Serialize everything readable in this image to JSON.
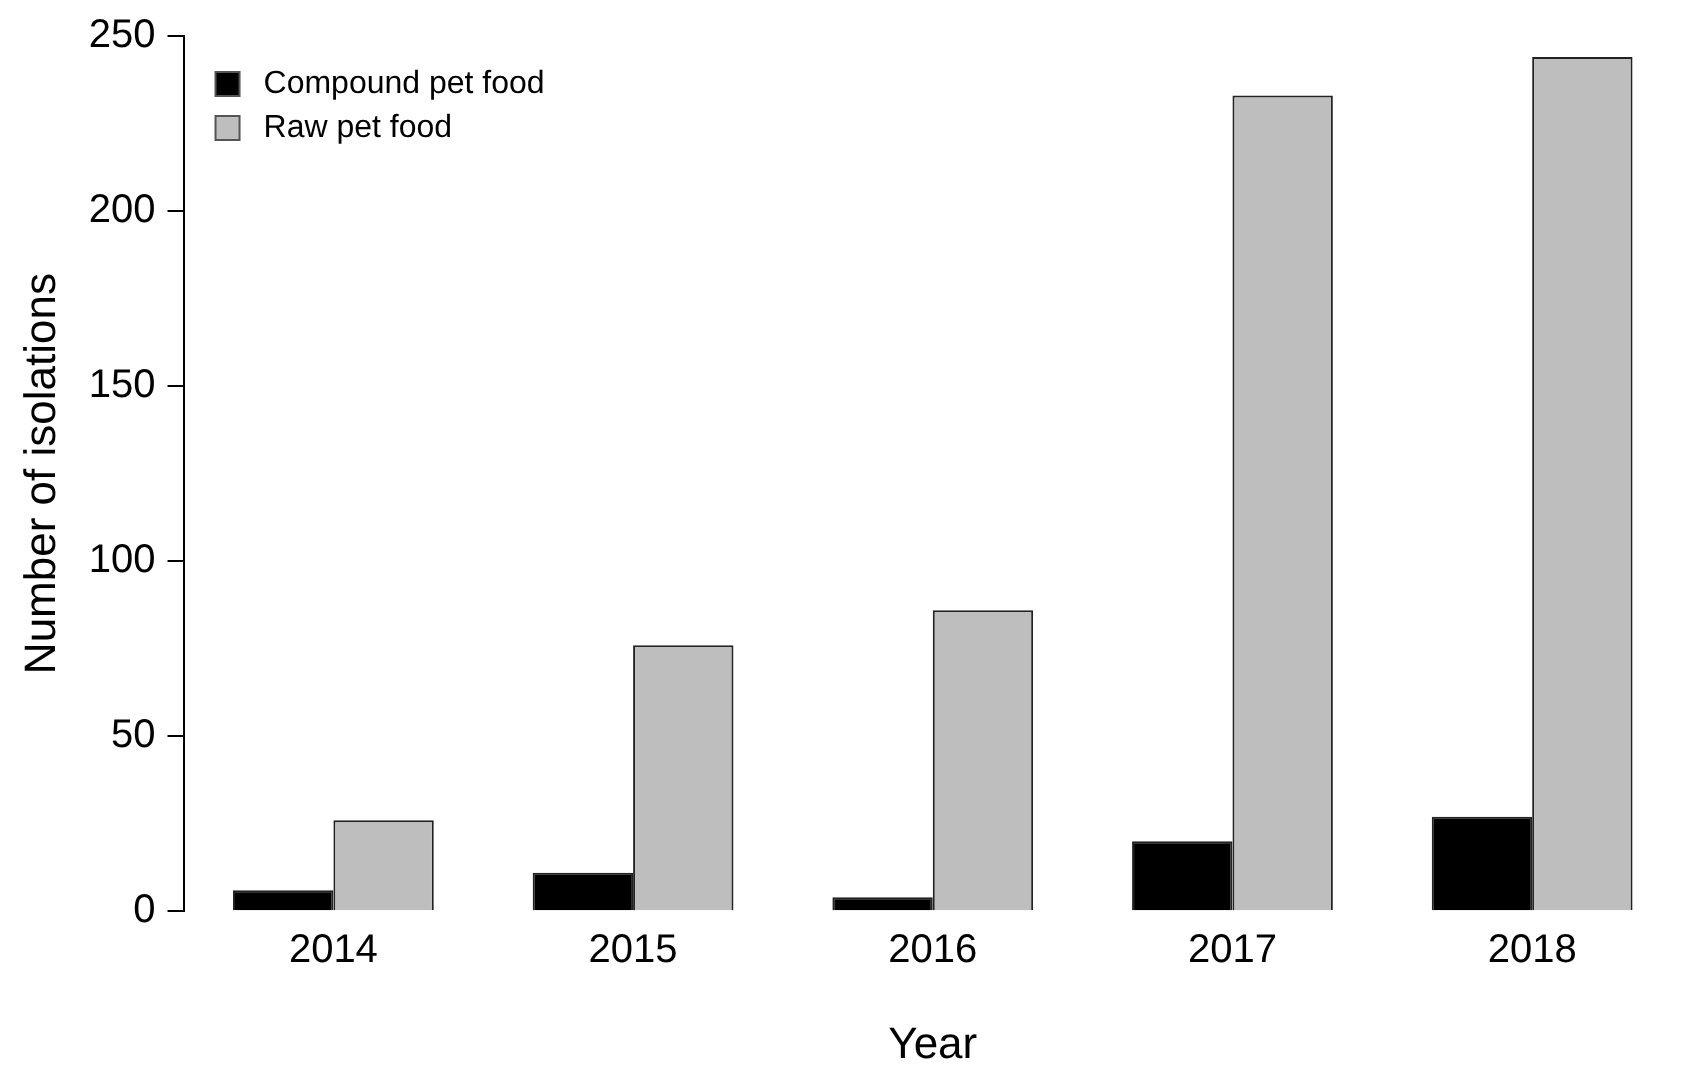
{
  "chart_data": {
    "type": "bar",
    "xlabel": "Year",
    "ylabel": "Number of isolations",
    "categories": [
      "2014",
      "2015",
      "2016",
      "2017",
      "2018"
    ],
    "series": [
      {
        "name": "Compound pet food",
        "color": "#000000",
        "values": [
          6,
          11,
          4,
          20,
          27
        ]
      },
      {
        "name": "Raw pet food",
        "color": "#bebebe",
        "values": [
          26,
          76,
          86,
          233,
          244
        ]
      }
    ],
    "ylim": [
      0,
      250
    ],
    "yticks": [
      0,
      50,
      100,
      150,
      200,
      250
    ],
    "grid": false,
    "legend": "top left"
  }
}
